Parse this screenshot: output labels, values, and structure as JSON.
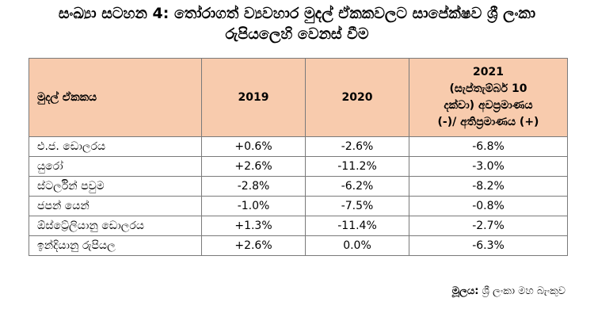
{
  "title": {
    "line1": "සංඛ්‍යා සටහන 4: තෝරාගත් ව්‍යවහාර මුදල් ඒකකවලට සාපේක්ෂව ශ්‍රී ලංකා",
    "line2": "රුපියලෙහි වෙනස් වීම"
  },
  "table": {
    "headers": {
      "currency": "මුදල් ඒකකය",
      "y2019": "2019",
      "y2020": "2020",
      "y2021_line1": "2021",
      "y2021_line2": "(සැප්තැම්බර් 10",
      "y2021_line3": "දක්වා) අවප්‍රමාණය",
      "y2021_line4": "(-)/ අතිප්‍රමාණය (+)"
    },
    "rows": [
      {
        "currency": "එ.ජ. ඩොලරය",
        "y2019": "+0.6%",
        "y2020": "-2.6%",
        "y2021": "-6.8%"
      },
      {
        "currency": "යුරෝ",
        "y2019": "+2.6%",
        "y2020": "-11.2%",
        "y2021": "-3.0%"
      },
      {
        "currency": "ස්ටර්ලින් පවුම",
        "y2019": "-2.8%",
        "y2020": "-6.2%",
        "y2021": "-8.2%"
      },
      {
        "currency": "ජපන් යෙන්",
        "y2019": "-1.0%",
        "y2020": "-7.5%",
        "y2021": "-0.8%"
      },
      {
        "currency": "ඕස්ට්‍රේලියානු ඩොලරය",
        "y2019": "+1.3%",
        "y2020": "-11.4%",
        "y2021": "-2.7%"
      },
      {
        "currency": "ඉන්දියානු රුපියල",
        "y2019": "+2.6%",
        "y2020": "0.0%",
        "y2021": "-6.3%"
      }
    ]
  },
  "source": {
    "label": "මූලය:",
    "value": "ශ්‍රී ලංකා මහ බැංකුව"
  },
  "colors": {
    "header_bg": "#f8cbad",
    "border": "#7a7a7a"
  }
}
